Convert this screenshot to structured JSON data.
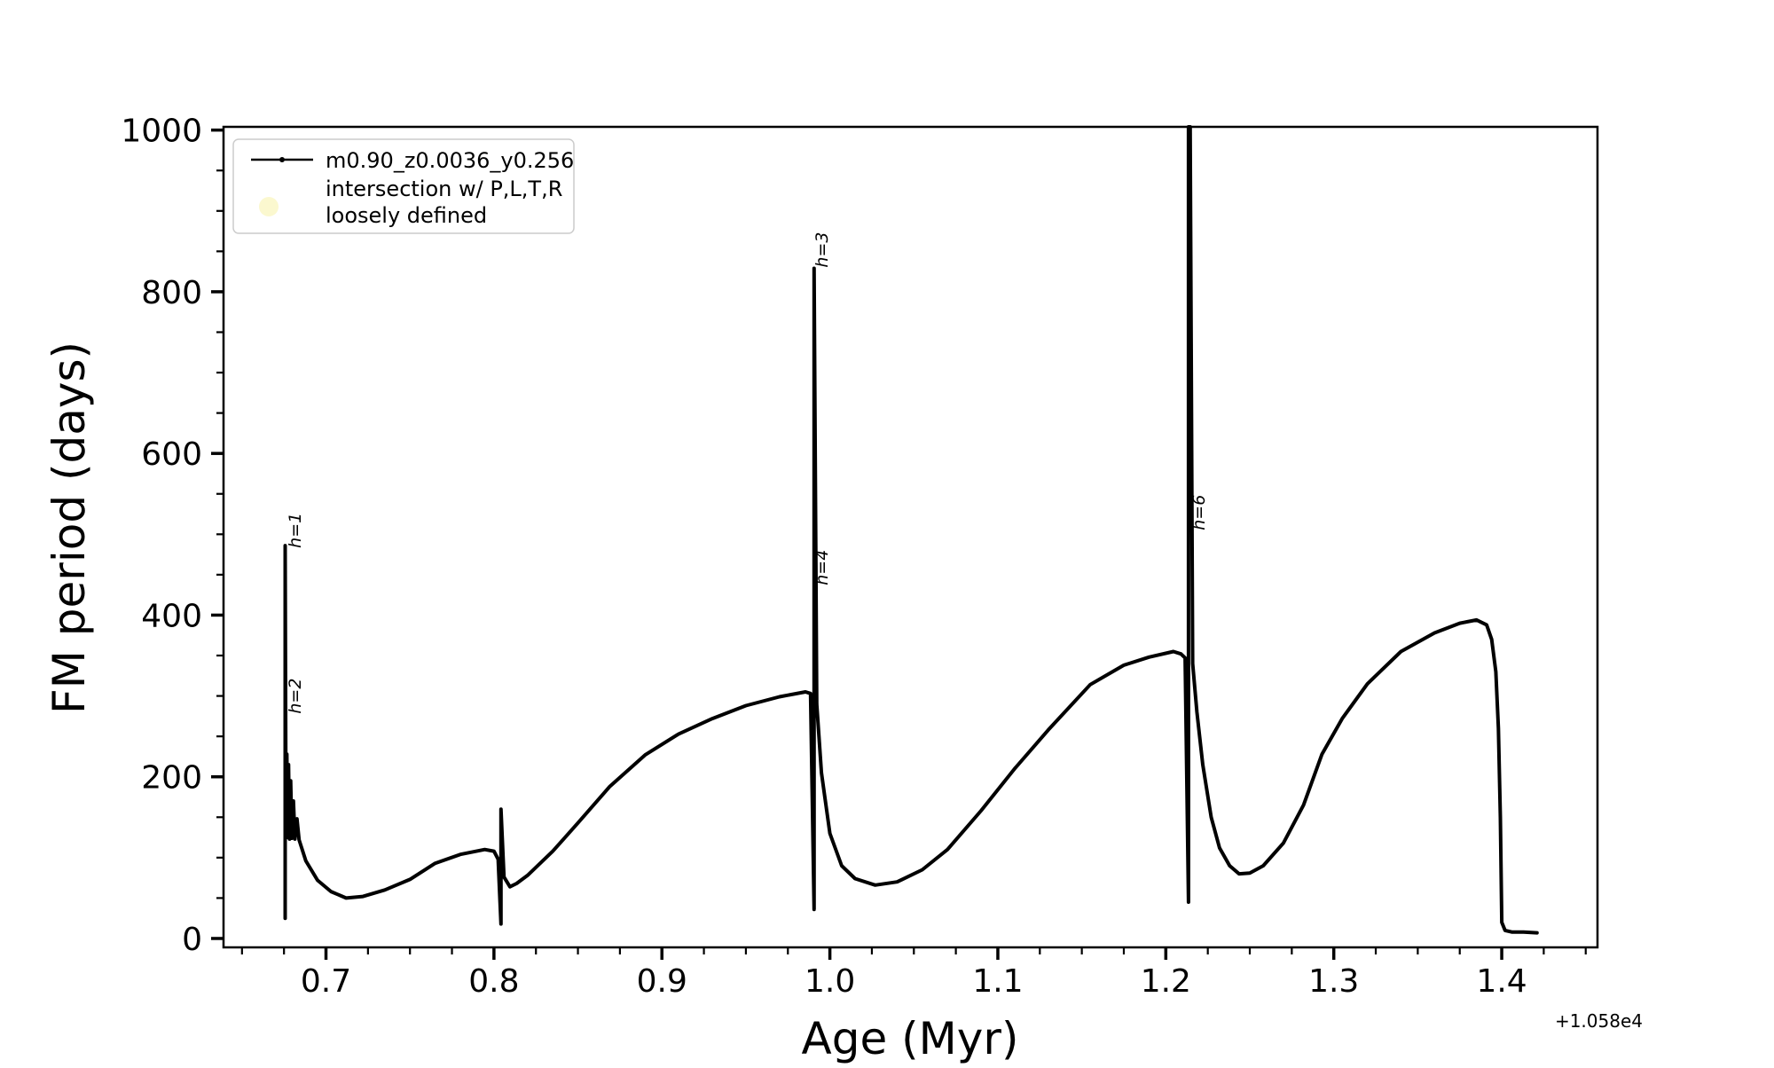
{
  "figure": {
    "background_color": "#ffffff",
    "axis_color": "#000000",
    "curve_color": "#000000",
    "legend_border_color": "#cccccc",
    "intersection_marker_color": "#fbf8cf"
  },
  "chart_data": {
    "type": "line",
    "title": "",
    "xlabel": "Age (Myr)",
    "ylabel": "FM period (days)",
    "x_offset_label": "+1.058e4",
    "xlim": [
      0.639,
      1.457
    ],
    "ylim": [
      -11,
      1004
    ],
    "x_ticks": [
      0.7,
      0.8,
      0.9,
      1.0,
      1.1,
      1.2,
      1.3,
      1.4
    ],
    "x_tick_labels": [
      "0.7",
      "0.8",
      "0.9",
      "1.0",
      "1.1",
      "1.2",
      "1.3",
      "1.4"
    ],
    "y_ticks": [
      0,
      200,
      400,
      600,
      800,
      1000
    ],
    "y_tick_labels": [
      "0",
      "200",
      "400",
      "600",
      "800",
      "1000"
    ],
    "x_minor_step": 0.025,
    "y_minor_step": 50,
    "grid": false,
    "legend_position": "upper-left",
    "legend": [
      {
        "label": "m0.90_z0.0036_y0.256",
        "marker": "line-dot",
        "color": "#000000",
        "label_lines": [
          "m0.90_z0.0036_y0.256"
        ]
      },
      {
        "label": "intersection w/ P,L,T,R loosely defined",
        "marker": "circle",
        "color": "#fbf8cf",
        "label_lines": [
          "intersection w/ P,L,T,R",
          "loosely defined"
        ]
      }
    ],
    "annotations": [
      {
        "text": "h=1",
        "x": 0.685,
        "y": 483,
        "rotation": -90
      },
      {
        "text": "h=2",
        "x": 0.685,
        "y": 278,
        "rotation": -90
      },
      {
        "text": "h=3",
        "x": 0.9985,
        "y": 830,
        "rotation": -90
      },
      {
        "text": "h=4",
        "x": 0.9985,
        "y": 437,
        "rotation": -90
      },
      {
        "text": "h=6",
        "x": 1.223,
        "y": 505,
        "rotation": -90
      }
    ],
    "series": [
      {
        "name": "m0.90_z0.0036_y0.256",
        "points": [
          [
            0.6757,
            25
          ],
          [
            0.6757,
            486
          ],
          [
            0.6762,
            140
          ],
          [
            0.6767,
            228
          ],
          [
            0.6772,
            125
          ],
          [
            0.6777,
            215
          ],
          [
            0.6783,
            123
          ],
          [
            0.679,
            195
          ],
          [
            0.6797,
            124
          ],
          [
            0.6806,
            170
          ],
          [
            0.6815,
            123
          ],
          [
            0.6827,
            148
          ],
          [
            0.684,
            122
          ],
          [
            0.688,
            96
          ],
          [
            0.695,
            72
          ],
          [
            0.703,
            58
          ],
          [
            0.712,
            50
          ],
          [
            0.722,
            52
          ],
          [
            0.735,
            60
          ],
          [
            0.75,
            73
          ],
          [
            0.765,
            93
          ],
          [
            0.78,
            104
          ],
          [
            0.7945,
            110
          ],
          [
            0.8,
            108
          ],
          [
            0.8025,
            98
          ],
          [
            0.8042,
            18
          ],
          [
            0.8042,
            160
          ],
          [
            0.806,
            76
          ],
          [
            0.8095,
            64
          ],
          [
            0.8135,
            68
          ],
          [
            0.82,
            78
          ],
          [
            0.835,
            108
          ],
          [
            0.85,
            143
          ],
          [
            0.869,
            188
          ],
          [
            0.89,
            227
          ],
          [
            0.91,
            253
          ],
          [
            0.93,
            272
          ],
          [
            0.95,
            288
          ],
          [
            0.97,
            299
          ],
          [
            0.9855,
            305
          ],
          [
            0.9885,
            303
          ],
          [
            0.9906,
            36
          ],
          [
            0.9906,
            829
          ],
          [
            0.9922,
            290
          ],
          [
            0.995,
            205
          ],
          [
            1.0,
            130
          ],
          [
            1.007,
            90
          ],
          [
            1.015,
            74
          ],
          [
            1.027,
            66
          ],
          [
            1.04,
            70
          ],
          [
            1.055,
            85
          ],
          [
            1.07,
            110
          ],
          [
            1.09,
            158
          ],
          [
            1.11,
            210
          ],
          [
            1.13,
            258
          ],
          [
            1.155,
            314
          ],
          [
            1.175,
            338
          ],
          [
            1.19,
            348
          ],
          [
            1.2045,
            355
          ],
          [
            1.209,
            352
          ],
          [
            1.2115,
            347
          ],
          [
            1.2135,
            45
          ],
          [
            1.2135,
            1004
          ],
          [
            1.2145,
            1004
          ],
          [
            1.216,
            340
          ],
          [
            1.2185,
            280
          ],
          [
            1.222,
            215
          ],
          [
            1.227,
            150
          ],
          [
            1.232,
            112
          ],
          [
            1.238,
            90
          ],
          [
            1.2436,
            80
          ],
          [
            1.25,
            81
          ],
          [
            1.258,
            90
          ],
          [
            1.27,
            118
          ],
          [
            1.282,
            165
          ],
          [
            1.293,
            228
          ],
          [
            1.305,
            272
          ],
          [
            1.32,
            315
          ],
          [
            1.34,
            355
          ],
          [
            1.36,
            378
          ],
          [
            1.375,
            390
          ],
          [
            1.385,
            394
          ],
          [
            1.391,
            388
          ],
          [
            1.394,
            370
          ],
          [
            1.3965,
            330
          ],
          [
            1.398,
            260
          ],
          [
            1.3992,
            150
          ],
          [
            1.4,
            20
          ],
          [
            1.402,
            10
          ],
          [
            1.406,
            8
          ],
          [
            1.413,
            8
          ],
          [
            1.421,
            7
          ]
        ]
      }
    ]
  }
}
